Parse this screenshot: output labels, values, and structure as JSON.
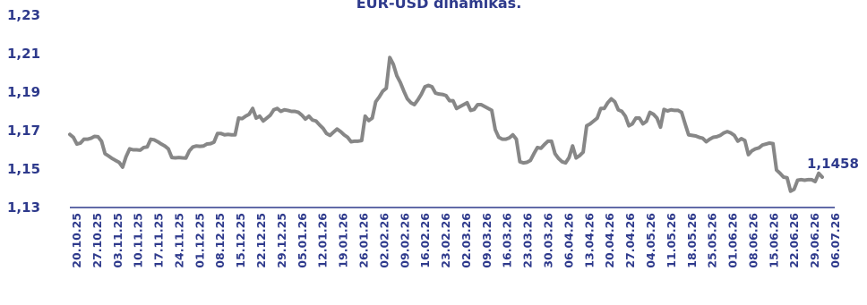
{
  "chart_data": {
    "type": "line",
    "title": "EUR-USD dinamikas.",
    "xlabel": "",
    "ylabel": "",
    "ylim": [
      1.13,
      1.23
    ],
    "y_ticks": [
      "1,23",
      "1,21",
      "1,19",
      "1,17",
      "1,15",
      "1,13"
    ],
    "y_tick_values": [
      1.23,
      1.21,
      1.19,
      1.17,
      1.15,
      1.13
    ],
    "x_tick_labels": [
      "20.10.25",
      "27.10.25",
      "03.11.25",
      "10.11.25",
      "17.11.25",
      "24.11.25",
      "01.12.25",
      "08.12.25",
      "15.12.25",
      "22.12.25",
      "29.12.25",
      "05.01.26",
      "12.01.26",
      "19.01.26",
      "26.01.26",
      "02.02.26",
      "09.02.26",
      "16.02.26",
      "23.02.26",
      "02.03.26",
      "09.03.26",
      "16.03.26",
      "23.03.26",
      "30.03.26",
      "06.04.26",
      "13.04.26",
      "20.04.26",
      "27.04.26",
      "04.05.26",
      "11.05.26",
      "18.05.26",
      "25.05.26",
      "01.06.26",
      "08.06.26",
      "15.06.26",
      "22.06.26",
      "29.06.26",
      "06.07.26"
    ],
    "last_value_label": "1,1458",
    "grid": false,
    "legend": "none",
    "line_color": "#878787",
    "axis_color": "#2e3a8c",
    "label_color": "#2e3a8c",
    "series": [
      {
        "values": [
          1.168,
          1.1665,
          1.163,
          1.1635,
          1.1655,
          1.1655,
          1.166,
          1.167,
          1.1668,
          1.1645,
          1.158,
          1.1568,
          1.1555,
          1.1545,
          1.1535,
          1.151,
          1.1565,
          1.1605,
          1.16,
          1.16,
          1.1598,
          1.1612,
          1.1615,
          1.1655,
          1.1652,
          1.1642,
          1.163,
          1.162,
          1.1605,
          1.156,
          1.1558,
          1.156,
          1.1558,
          1.1557,
          1.1595,
          1.1615,
          1.162,
          1.1618,
          1.162,
          1.163,
          1.1632,
          1.164,
          1.1685,
          1.1685,
          1.1678,
          1.168,
          1.1678,
          1.1678,
          1.1765,
          1.1762,
          1.1775,
          1.1785,
          1.1815,
          1.1765,
          1.1775,
          1.175,
          1.1765,
          1.178,
          1.1808,
          1.1815,
          1.18,
          1.1808,
          1.1805,
          1.18,
          1.18,
          1.1795,
          1.178,
          1.176,
          1.1775,
          1.1755,
          1.175,
          1.173,
          1.1712,
          1.1685,
          1.1675,
          1.1692,
          1.1708,
          1.1695,
          1.1678,
          1.1665,
          1.1642,
          1.1645,
          1.1645,
          1.1648,
          1.1775,
          1.1752,
          1.1765,
          1.185,
          1.1875,
          1.1905,
          1.192,
          1.208,
          1.2045,
          1.1985,
          1.195,
          1.1905,
          1.1865,
          1.1845,
          1.1835,
          1.186,
          1.189,
          1.1928,
          1.1935,
          1.1928,
          1.1895,
          1.189,
          1.1888,
          1.1882,
          1.1855,
          1.1855,
          1.1815,
          1.1825,
          1.1835,
          1.1845,
          1.1805,
          1.181,
          1.1835,
          1.1835,
          1.1825,
          1.1815,
          1.1805,
          1.1705,
          1.1665,
          1.1655,
          1.1655,
          1.1662,
          1.1678,
          1.1655,
          1.1538,
          1.1532,
          1.1535,
          1.1545,
          1.158,
          1.1612,
          1.1608,
          1.1628,
          1.1645,
          1.1645,
          1.158,
          1.1555,
          1.1538,
          1.1532,
          1.156,
          1.162,
          1.1558,
          1.157,
          1.1588,
          1.1725,
          1.1735,
          1.175,
          1.1765,
          1.1815,
          1.1815,
          1.1845,
          1.1865,
          1.185,
          1.1808,
          1.18,
          1.1775,
          1.1725,
          1.1735,
          1.1765,
          1.1765,
          1.1735,
          1.1748,
          1.1795,
          1.1785,
          1.1765,
          1.1718,
          1.181,
          1.1802,
          1.1808,
          1.1805,
          1.1805,
          1.1795,
          1.1735,
          1.1678,
          1.1675,
          1.1672,
          1.1665,
          1.166,
          1.1642,
          1.1655,
          1.1665,
          1.1668,
          1.1675,
          1.1688,
          1.1695,
          1.1688,
          1.1675,
          1.1645,
          1.1658,
          1.1648,
          1.1575,
          1.1595,
          1.1605,
          1.161,
          1.1625,
          1.163,
          1.1635,
          1.1632,
          1.1495,
          1.1478,
          1.1458,
          1.1455,
          1.1385,
          1.1395,
          1.1442,
          1.1445,
          1.1442,
          1.1445,
          1.1445,
          1.1435,
          1.1478,
          1.1458
        ]
      }
    ]
  }
}
